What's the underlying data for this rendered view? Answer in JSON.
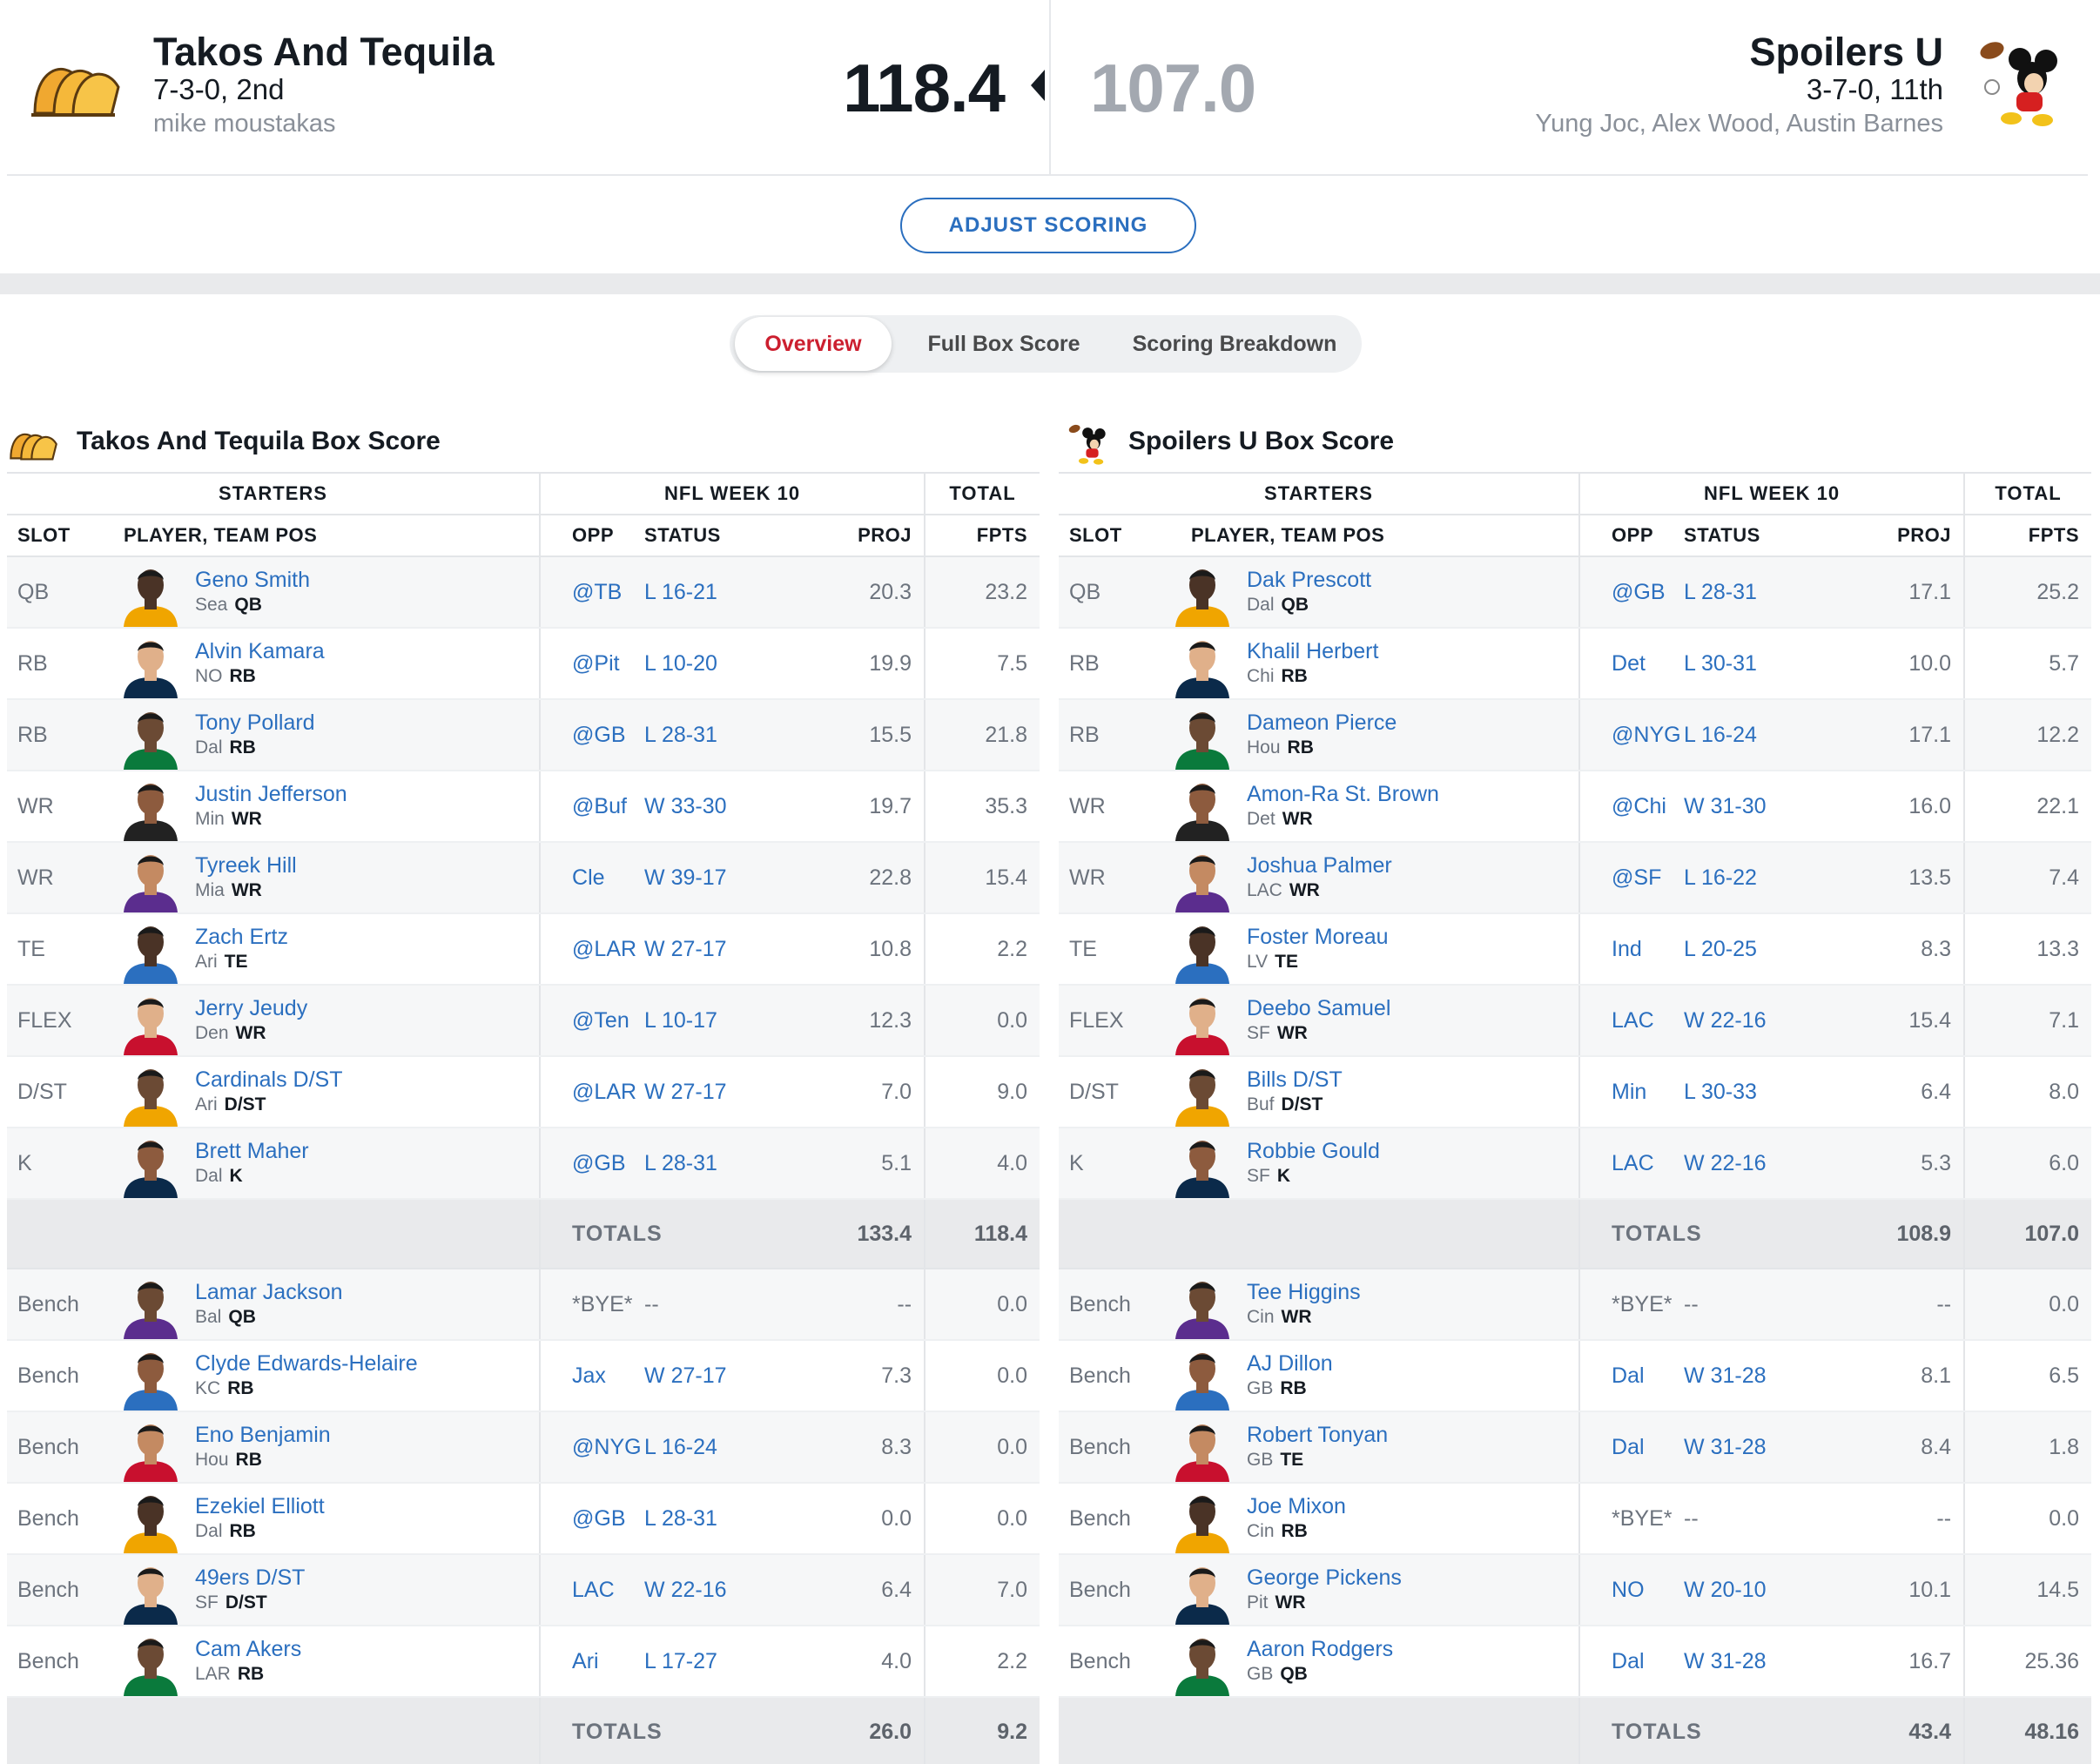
{
  "matchup": {
    "home": {
      "name": "Takos And Tequila",
      "record": "7-3-0, 2nd",
      "owner": "mike moustakas",
      "score": "118.4"
    },
    "away": {
      "name": "Spoilers U",
      "record": "3-7-0, 11th",
      "owner": "Yung Joc, Alex Wood, Austin Barnes",
      "score": "107.0"
    },
    "adjust_scoring_label": "ADJUST SCORING"
  },
  "tabs": [
    {
      "label": "Overview",
      "active": true
    },
    {
      "label": "Full Box Score",
      "active": false
    },
    {
      "label": "Scoring Breakdown",
      "active": false
    }
  ],
  "columns": {
    "group_starters": "STARTERS",
    "group_week": "NFL WEEK 10",
    "group_total": "TOTAL",
    "slot": "SLOT",
    "player": "PLAYER, TEAM POS",
    "opp": "OPP",
    "status": "STATUS",
    "proj": "PROJ",
    "fpts": "FPTS"
  },
  "home_box": {
    "title": "Takos And Tequila Box Score",
    "starters": [
      {
        "slot": "QB",
        "name": "Geno Smith",
        "team": "Sea",
        "pos": "QB",
        "opp": "@TB",
        "status": "L 16-21",
        "proj": "20.3",
        "fpts": "23.2"
      },
      {
        "slot": "RB",
        "name": "Alvin Kamara",
        "team": "NO",
        "pos": "RB",
        "opp": "@Pit",
        "status": "L 10-20",
        "proj": "19.9",
        "fpts": "7.5"
      },
      {
        "slot": "RB",
        "name": "Tony Pollard",
        "team": "Dal",
        "pos": "RB",
        "opp": "@GB",
        "status": "L 28-31",
        "proj": "15.5",
        "fpts": "21.8"
      },
      {
        "slot": "WR",
        "name": "Justin Jefferson",
        "team": "Min",
        "pos": "WR",
        "opp": "@Buf",
        "status": "W 33-30",
        "proj": "19.7",
        "fpts": "35.3"
      },
      {
        "slot": "WR",
        "name": "Tyreek Hill",
        "team": "Mia",
        "pos": "WR",
        "opp": "Cle",
        "status": "W 39-17",
        "proj": "22.8",
        "fpts": "15.4"
      },
      {
        "slot": "TE",
        "name": "Zach Ertz",
        "team": "Ari",
        "pos": "TE",
        "opp": "@LAR",
        "status": "W 27-17",
        "proj": "10.8",
        "fpts": "2.2"
      },
      {
        "slot": "FLEX",
        "name": "Jerry Jeudy",
        "team": "Den",
        "pos": "WR",
        "opp": "@Ten",
        "status": "L 10-17",
        "proj": "12.3",
        "fpts": "0.0"
      },
      {
        "slot": "D/ST",
        "name": "Cardinals D/ST",
        "team": "Ari",
        "pos": "D/ST",
        "opp": "@LAR",
        "status": "W 27-17",
        "proj": "7.0",
        "fpts": "9.0"
      },
      {
        "slot": "K",
        "name": "Brett Maher",
        "team": "Dal",
        "pos": "K",
        "opp": "@GB",
        "status": "L 28-31",
        "proj": "5.1",
        "fpts": "4.0"
      }
    ],
    "starters_totals": {
      "label": "TOTALS",
      "proj": "133.4",
      "fpts": "118.4"
    },
    "bench": [
      {
        "slot": "Bench",
        "name": "Lamar Jackson",
        "team": "Bal",
        "pos": "QB",
        "opp": "*BYE*",
        "status": "--",
        "proj": "--",
        "fpts": "0.0"
      },
      {
        "slot": "Bench",
        "name": "Clyde Edwards-Helaire",
        "team": "KC",
        "pos": "RB",
        "opp": "Jax",
        "status": "W 27-17",
        "proj": "7.3",
        "fpts": "0.0"
      },
      {
        "slot": "Bench",
        "name": "Eno Benjamin",
        "team": "Hou",
        "pos": "RB",
        "opp": "@NYG",
        "status": "L 16-24",
        "proj": "8.3",
        "fpts": "0.0"
      },
      {
        "slot": "Bench",
        "name": "Ezekiel Elliott",
        "team": "Dal",
        "pos": "RB",
        "opp": "@GB",
        "status": "L 28-31",
        "proj": "0.0",
        "fpts": "0.0"
      },
      {
        "slot": "Bench",
        "name": "49ers D/ST",
        "team": "SF",
        "pos": "D/ST",
        "opp": "LAC",
        "status": "W 22-16",
        "proj": "6.4",
        "fpts": "7.0"
      },
      {
        "slot": "Bench",
        "name": "Cam Akers",
        "team": "LAR",
        "pos": "RB",
        "opp": "Ari",
        "status": "L 17-27",
        "proj": "4.0",
        "fpts": "2.2"
      }
    ],
    "bench_totals": {
      "label": "TOTALS",
      "proj": "26.0",
      "fpts": "9.2"
    }
  },
  "away_box": {
    "title": "Spoilers U Box Score",
    "starters": [
      {
        "slot": "QB",
        "name": "Dak Prescott",
        "team": "Dal",
        "pos": "QB",
        "opp": "@GB",
        "status": "L 28-31",
        "proj": "17.1",
        "fpts": "25.2"
      },
      {
        "slot": "RB",
        "name": "Khalil Herbert",
        "team": "Chi",
        "pos": "RB",
        "opp": "Det",
        "status": "L 30-31",
        "proj": "10.0",
        "fpts": "5.7"
      },
      {
        "slot": "RB",
        "name": "Dameon Pierce",
        "team": "Hou",
        "pos": "RB",
        "opp": "@NYG",
        "status": "L 16-24",
        "proj": "17.1",
        "fpts": "12.2"
      },
      {
        "slot": "WR",
        "name": "Amon-Ra St. Brown",
        "team": "Det",
        "pos": "WR",
        "opp": "@Chi",
        "status": "W 31-30",
        "proj": "16.0",
        "fpts": "22.1"
      },
      {
        "slot": "WR",
        "name": "Joshua Palmer",
        "team": "LAC",
        "pos": "WR",
        "opp": "@SF",
        "status": "L 16-22",
        "proj": "13.5",
        "fpts": "7.4"
      },
      {
        "slot": "TE",
        "name": "Foster Moreau",
        "team": "LV",
        "pos": "TE",
        "opp": "Ind",
        "status": "L 20-25",
        "proj": "8.3",
        "fpts": "13.3"
      },
      {
        "slot": "FLEX",
        "name": "Deebo Samuel",
        "team": "SF",
        "pos": "WR",
        "opp": "LAC",
        "status": "W 22-16",
        "proj": "15.4",
        "fpts": "7.1"
      },
      {
        "slot": "D/ST",
        "name": "Bills D/ST",
        "team": "Buf",
        "pos": "D/ST",
        "opp": "Min",
        "status": "L 30-33",
        "proj": "6.4",
        "fpts": "8.0"
      },
      {
        "slot": "K",
        "name": "Robbie Gould",
        "team": "SF",
        "pos": "K",
        "opp": "LAC",
        "status": "W 22-16",
        "proj": "5.3",
        "fpts": "6.0"
      }
    ],
    "starters_totals": {
      "label": "TOTALS",
      "proj": "108.9",
      "fpts": "107.0"
    },
    "bench": [
      {
        "slot": "Bench",
        "name": "Tee Higgins",
        "team": "Cin",
        "pos": "WR",
        "opp": "*BYE*",
        "status": "--",
        "proj": "--",
        "fpts": "0.0"
      },
      {
        "slot": "Bench",
        "name": "AJ Dillon",
        "team": "GB",
        "pos": "RB",
        "opp": "Dal",
        "status": "W 31-28",
        "proj": "8.1",
        "fpts": "6.5"
      },
      {
        "slot": "Bench",
        "name": "Robert Tonyan",
        "team": "GB",
        "pos": "TE",
        "opp": "Dal",
        "status": "W 31-28",
        "proj": "8.4",
        "fpts": "1.8"
      },
      {
        "slot": "Bench",
        "name": "Joe Mixon",
        "team": "Cin",
        "pos": "RB",
        "opp": "*BYE*",
        "status": "--",
        "proj": "--",
        "fpts": "0.0"
      },
      {
        "slot": "Bench",
        "name": "George Pickens",
        "team": "Pit",
        "pos": "WR",
        "opp": "NO",
        "status": "W 20-10",
        "proj": "10.1",
        "fpts": "14.5"
      },
      {
        "slot": "Bench",
        "name": "Aaron Rodgers",
        "team": "GB",
        "pos": "QB",
        "opp": "Dal",
        "status": "W 31-28",
        "proj": "16.7",
        "fpts": "25.36"
      }
    ],
    "bench_totals": {
      "label": "TOTALS",
      "proj": "43.4",
      "fpts": "48.16"
    }
  },
  "colors": {
    "link_blue": "#2b6fbf",
    "active_tab_red": "#cc1f2f",
    "text_dark": "#151b22",
    "text_gray": "#6c737d",
    "score_loser_gray": "#a3a8b0",
    "row_stripe": "#f6f7f8",
    "totals_bg": "#e9eaec"
  }
}
